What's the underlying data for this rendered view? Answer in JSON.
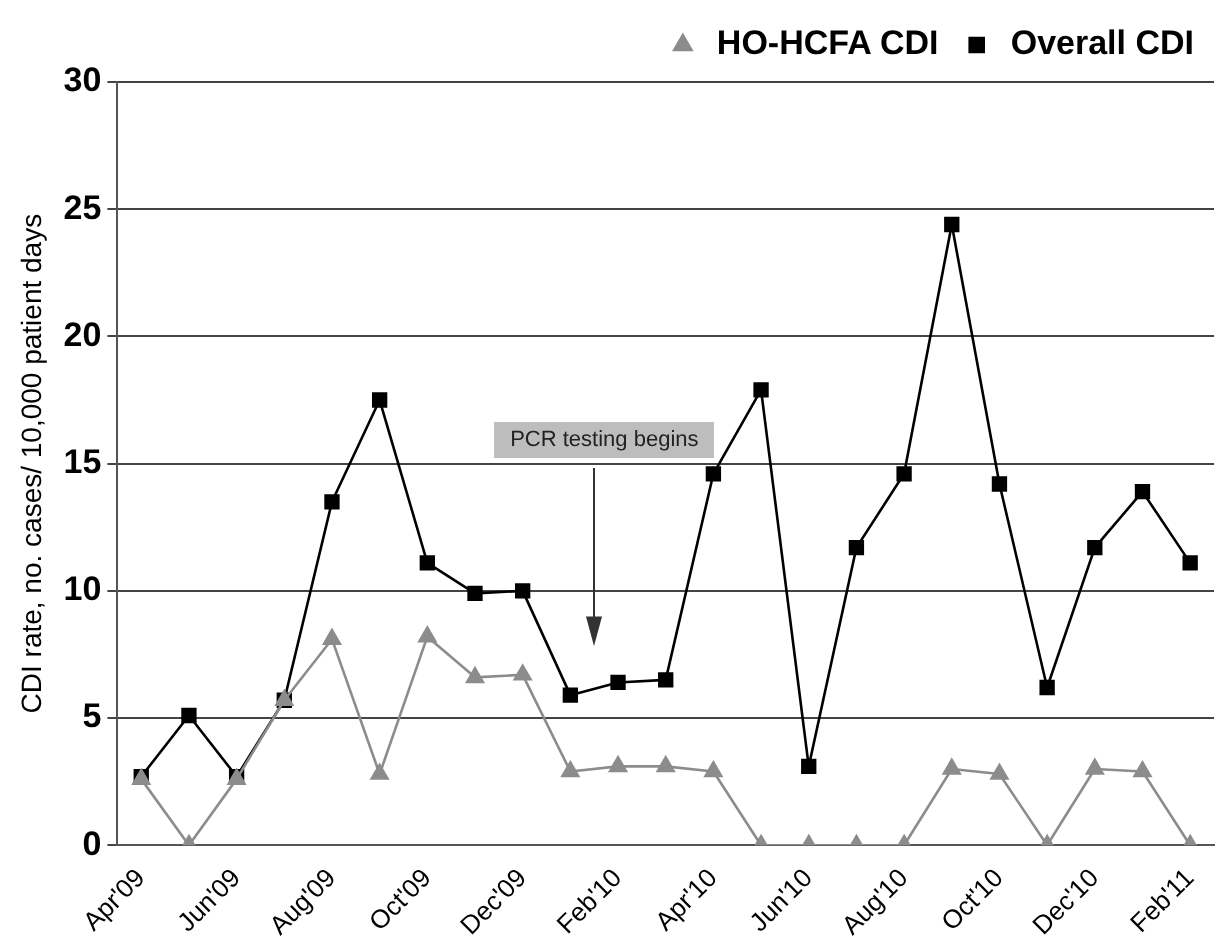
{
  "chart_data": {
    "type": "line",
    "ylabel": "CDI rate, no. cases/ 10,000 patient days",
    "categories": [
      "Apr'09",
      null,
      "Jun'09",
      null,
      "Aug'09",
      null,
      "Oct'09",
      null,
      "Dec'09",
      null,
      "Feb'10",
      null,
      "Apr'10",
      null,
      "Jun'10",
      null,
      "Aug'10",
      null,
      "Oct'10",
      null,
      "Dec'10",
      null,
      "Feb'11"
    ],
    "series": [
      {
        "name": "Overall CDI",
        "color": "#000000",
        "marker": "square",
        "values": [
          2.7,
          5.1,
          2.7,
          5.7,
          13.5,
          17.5,
          11.1,
          9.9,
          10.0,
          5.9,
          6.4,
          6.5,
          14.6,
          17.9,
          3.1,
          11.7,
          14.6,
          24.4,
          14.2,
          6.2,
          11.7,
          13.9,
          11.1
        ]
      },
      {
        "name": "HO-HCFA CDI",
        "color": "#8c8c8c",
        "marker": "triangle",
        "values": [
          2.6,
          0,
          2.6,
          5.7,
          8.1,
          2.8,
          8.2,
          6.6,
          6.7,
          2.9,
          3.1,
          3.1,
          2.9,
          0,
          0,
          0,
          0,
          3.0,
          2.8,
          0,
          3.0,
          2.9,
          0
        ]
      }
    ],
    "ylim": [
      0,
      30
    ],
    "yticks": [
      0,
      5,
      10,
      15,
      20,
      25,
      30
    ],
    "grid": "y",
    "legend": "top right",
    "line_style": "solid",
    "annotations": [
      "PCR testing begins"
    ]
  }
}
